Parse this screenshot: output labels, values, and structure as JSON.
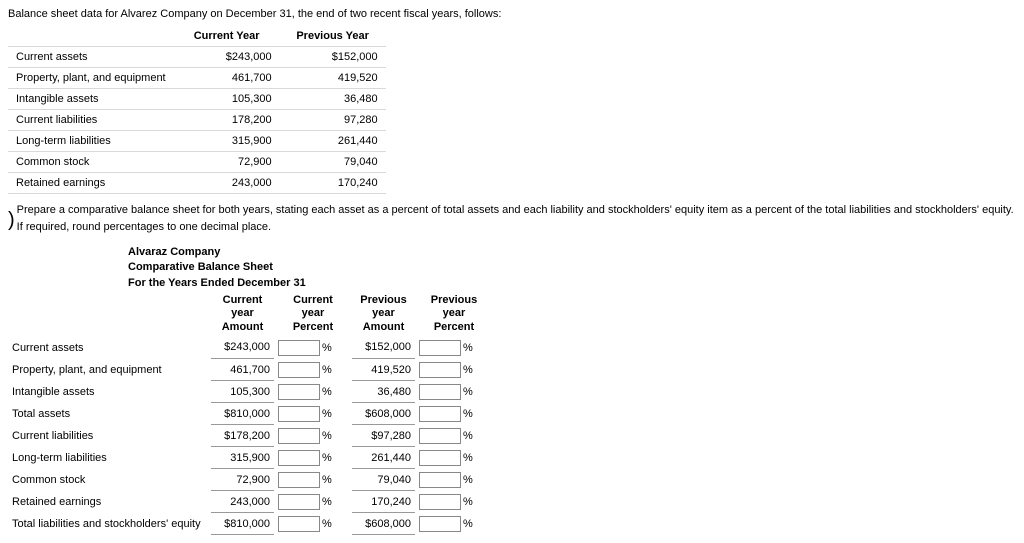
{
  "intro": "Balance sheet data for Alvarez Company on December 31, the end of two recent fiscal years, follows:",
  "columns": {
    "current": "Current Year",
    "previous": "Previous Year"
  },
  "data_rows": [
    {
      "label": "Current assets",
      "current": "$243,000",
      "previous": "$152,000"
    },
    {
      "label": "Property, plant, and equipment",
      "current": "461,700",
      "previous": "419,520"
    },
    {
      "label": "Intangible assets",
      "current": "105,300",
      "previous": "36,480"
    },
    {
      "label": "Current liabilities",
      "current": "178,200",
      "previous": "97,280"
    },
    {
      "label": "Long-term liabilities",
      "current": "315,900",
      "previous": "261,440"
    },
    {
      "label": "Common stock",
      "current": "72,900",
      "previous": "79,040"
    },
    {
      "label": "Retained earnings",
      "current": "243,000",
      "previous": "170,240"
    }
  ],
  "instructions": "Prepare a comparative balance sheet for both years, stating each asset as a percent of total assets and each liability and stockholders' equity item as a percent of the total liabilities and stockholders' equity. If required, round percentages to one decimal place.",
  "sheet_title": {
    "company": "Alvaraz Company",
    "report": "Comparative Balance Sheet",
    "period": "For the Years Ended December 31"
  },
  "sheet_headers": {
    "cur_amt": "Current year Amount",
    "cur_pct": "Current year Percent",
    "prev_amt": "Previous year Amount",
    "prev_pct": "Previous year Percent"
  },
  "sheet_rows": [
    {
      "label": "Current assets",
      "cur": "$243,000",
      "prev": "$152,000"
    },
    {
      "label": "Property, plant, and equipment",
      "cur": "461,700",
      "prev": "419,520"
    },
    {
      "label": "Intangible assets",
      "cur": "105,300",
      "prev": "36,480"
    },
    {
      "label": "Total assets",
      "cur": "$810,000",
      "prev": "$608,000"
    },
    {
      "label": "Current liabilities",
      "cur": "$178,200",
      "prev": "$97,280"
    },
    {
      "label": "Long-term liabilities",
      "cur": "315,900",
      "prev": "261,440"
    },
    {
      "label": "Common stock",
      "cur": "72,900",
      "prev": "79,040"
    },
    {
      "label": "Retained earnings",
      "cur": "243,000",
      "prev": "170,240"
    },
    {
      "label": "Total liabilities and stockholders' equity",
      "cur": "$810,000",
      "prev": "$608,000"
    }
  ],
  "percent_sign": "%"
}
